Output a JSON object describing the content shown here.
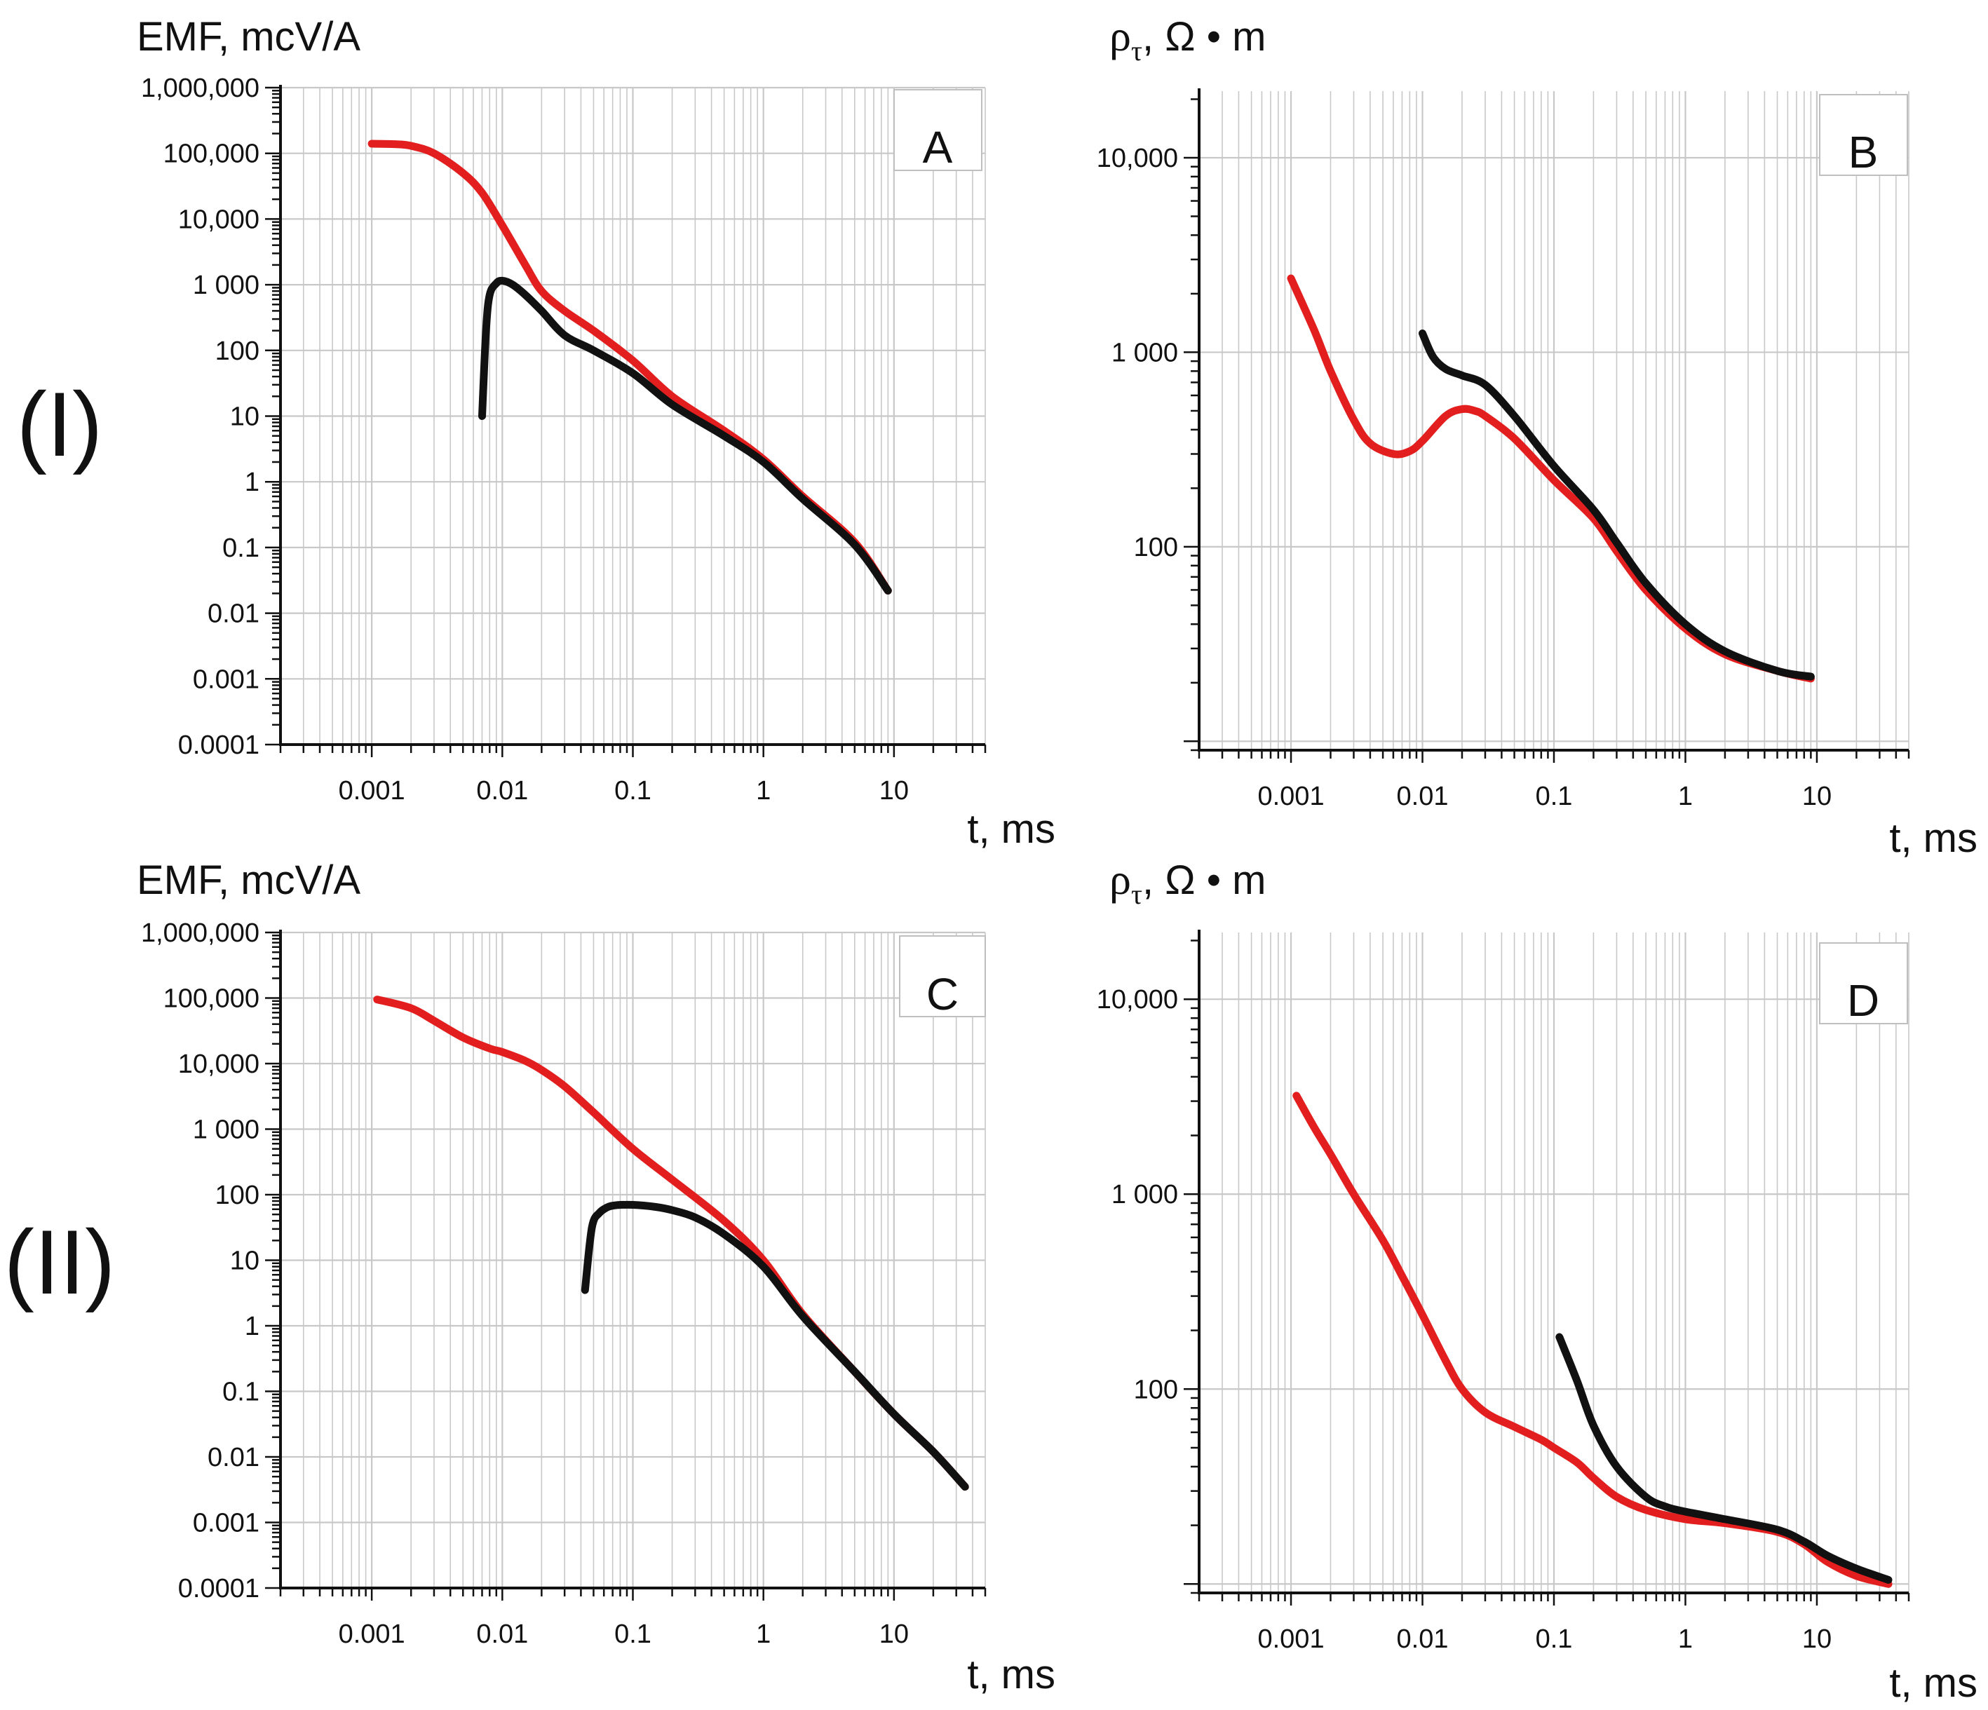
{
  "row_labels": [
    "(I)",
    "(II)"
  ],
  "colors": {
    "red": "#e31e1e",
    "black": "#111111",
    "grid": "#c8c8c8",
    "axis": "#111111"
  },
  "chart_data": [
    {
      "id": "A",
      "row": "(I)",
      "label": "A",
      "type": "line",
      "title": "",
      "ylabel": "EMF, mcV/A",
      "xlabel": "t, ms",
      "x_scale": "log",
      "y_scale": "log",
      "xlim": [
        0.0002,
        50
      ],
      "ylim": [
        0.0001,
        1000000
      ],
      "x_ticks": [
        {
          "v": 0.001,
          "label": "0.001"
        },
        {
          "v": 0.01,
          "label": "0.01"
        },
        {
          "v": 0.1,
          "label": "0.1"
        },
        {
          "v": 1,
          "label": "1"
        },
        {
          "v": 10,
          "label": "10"
        }
      ],
      "y_ticks": [
        {
          "v": 1000000,
          "label": "1,000,000"
        },
        {
          "v": 100000,
          "label": "100,000"
        },
        {
          "v": 10000,
          "label": "10,000"
        },
        {
          "v": 1000,
          "label": "1 000"
        },
        {
          "v": 100,
          "label": "100"
        },
        {
          "v": 10,
          "label": "10"
        },
        {
          "v": 1,
          "label": "1"
        },
        {
          "v": 0.1,
          "label": "0.1"
        },
        {
          "v": 0.01,
          "label": "0.01"
        },
        {
          "v": 0.001,
          "label": "0.001"
        },
        {
          "v": 0.0001,
          "label": "0.0001"
        }
      ],
      "series": [
        {
          "name": "red",
          "color": "red",
          "x": [
            0.001,
            0.0015,
            0.002,
            0.003,
            0.005,
            0.007,
            0.01,
            0.015,
            0.02,
            0.03,
            0.05,
            0.1,
            0.2,
            0.5,
            1,
            2,
            5,
            9
          ],
          "y": [
            140000,
            138000,
            130000,
            100000,
            50000,
            25000,
            8000,
            2000,
            800,
            400,
            200,
            70,
            20,
            6,
            2.2,
            0.6,
            0.12,
            0.022
          ]
        },
        {
          "name": "black",
          "color": "black",
          "x": [
            0.007,
            0.0075,
            0.008,
            0.009,
            0.01,
            0.012,
            0.015,
            0.02,
            0.03,
            0.05,
            0.1,
            0.2,
            0.5,
            1,
            2,
            5,
            9
          ],
          "y": [
            10,
            200,
            700,
            1050,
            1150,
            1000,
            700,
            400,
            170,
            100,
            45,
            15,
            5,
            2,
            0.55,
            0.11,
            0.022
          ]
        }
      ]
    },
    {
      "id": "B",
      "row": "(I)",
      "label": "B",
      "type": "line",
      "title": "",
      "ylabel_main": "ρ",
      "ylabel_sub": "τ",
      "ylabel_rest": ", Ω • m",
      "xlabel": "t, ms",
      "x_scale": "log",
      "y_scale": "log",
      "xlim": [
        0.0002,
        50
      ],
      "ylim": [
        9,
        22000
      ],
      "x_ticks": [
        {
          "v": 0.001,
          "label": "0.001"
        },
        {
          "v": 0.01,
          "label": "0.01"
        },
        {
          "v": 0.1,
          "label": "0.1"
        },
        {
          "v": 1,
          "label": "1"
        },
        {
          "v": 10,
          "label": "10"
        }
      ],
      "y_ticks": [
        {
          "v": 10000,
          "label": "10,000"
        },
        {
          "v": 1000,
          "label": "1 000"
        },
        {
          "v": 100,
          "label": "100"
        },
        {
          "v": 10,
          "label": ""
        }
      ],
      "series": [
        {
          "name": "red",
          "color": "red",
          "x": [
            0.001,
            0.0015,
            0.002,
            0.003,
            0.004,
            0.006,
            0.008,
            0.01,
            0.015,
            0.02,
            0.025,
            0.03,
            0.05,
            0.1,
            0.2,
            0.3,
            0.5,
            1,
            2,
            5,
            9
          ],
          "y": [
            2400,
            1300,
            800,
            450,
            340,
            300,
            310,
            350,
            470,
            510,
            500,
            470,
            360,
            220,
            140,
            95,
            60,
            38,
            28,
            23,
            21
          ]
        },
        {
          "name": "black",
          "color": "black",
          "x": [
            0.01,
            0.012,
            0.015,
            0.02,
            0.03,
            0.05,
            0.1,
            0.2,
            0.3,
            0.5,
            1,
            2,
            5,
            9
          ],
          "y": [
            1250,
            950,
            820,
            760,
            680,
            470,
            260,
            155,
            105,
            65,
            40,
            29,
            23,
            21.5
          ]
        }
      ]
    },
    {
      "id": "C",
      "row": "(II)",
      "label": "C",
      "type": "line",
      "title": "",
      "ylabel": "EMF, mcV/A",
      "xlabel": "t, ms",
      "x_scale": "log",
      "y_scale": "log",
      "xlim": [
        0.0002,
        50
      ],
      "ylim": [
        0.0001,
        1000000
      ],
      "x_ticks": [
        {
          "v": 0.001,
          "label": "0.001"
        },
        {
          "v": 0.01,
          "label": "0.01"
        },
        {
          "v": 0.1,
          "label": "0.1"
        },
        {
          "v": 1,
          "label": "1"
        },
        {
          "v": 10,
          "label": "10"
        }
      ],
      "y_ticks": [
        {
          "v": 1000000,
          "label": "1,000,000"
        },
        {
          "v": 100000,
          "label": "100,000"
        },
        {
          "v": 10000,
          "label": "10,000"
        },
        {
          "v": 1000,
          "label": "1 000"
        },
        {
          "v": 100,
          "label": "100"
        },
        {
          "v": 10,
          "label": "10"
        },
        {
          "v": 1,
          "label": "1"
        },
        {
          "v": 0.1,
          "label": "0.1"
        },
        {
          "v": 0.01,
          "label": "0.01"
        },
        {
          "v": 0.001,
          "label": "0.001"
        },
        {
          "v": 0.0001,
          "label": "0.0001"
        }
      ],
      "series": [
        {
          "name": "red",
          "color": "red",
          "x": [
            0.0011,
            0.002,
            0.003,
            0.005,
            0.008,
            0.01,
            0.015,
            0.02,
            0.03,
            0.05,
            0.1,
            0.2,
            0.5,
            1,
            2,
            5,
            10,
            20,
            35
          ],
          "y": [
            95000,
            70000,
            45000,
            25000,
            17000,
            15000,
            11000,
            8000,
            4500,
            1800,
            500,
            170,
            40,
            10,
            1.5,
            0.2,
            0.045,
            0.012,
            0.0035
          ]
        },
        {
          "name": "black",
          "color": "black",
          "x": [
            0.043,
            0.047,
            0.05,
            0.055,
            0.06,
            0.07,
            0.1,
            0.15,
            0.2,
            0.3,
            0.5,
            1,
            2,
            5,
            10,
            20,
            35
          ],
          "y": [
            3.5,
            20,
            40,
            52,
            60,
            68,
            70,
            65,
            58,
            45,
            25,
            8,
            1.4,
            0.2,
            0.045,
            0.012,
            0.0035
          ]
        }
      ]
    },
    {
      "id": "D",
      "row": "(II)",
      "label": "D",
      "type": "line",
      "title": "",
      "ylabel_main": "ρ",
      "ylabel_sub": "τ",
      "ylabel_rest": ", Ω • m",
      "xlabel": "t, ms",
      "x_scale": "log",
      "y_scale": "log",
      "xlim": [
        0.0002,
        50
      ],
      "ylim": [
        9,
        22000
      ],
      "x_ticks": [
        {
          "v": 0.001,
          "label": "0.001"
        },
        {
          "v": 0.01,
          "label": "0.01"
        },
        {
          "v": 0.1,
          "label": "0.1"
        },
        {
          "v": 1,
          "label": "1"
        },
        {
          "v": 10,
          "label": "10"
        }
      ],
      "y_ticks": [
        {
          "v": 10000,
          "label": "10,000"
        },
        {
          "v": 1000,
          "label": "1 000"
        },
        {
          "v": 100,
          "label": "100"
        },
        {
          "v": 10,
          "label": ""
        }
      ],
      "series": [
        {
          "name": "red",
          "color": "red",
          "x": [
            0.0011,
            0.0015,
            0.002,
            0.003,
            0.005,
            0.007,
            0.01,
            0.015,
            0.02,
            0.03,
            0.05,
            0.08,
            0.1,
            0.15,
            0.2,
            0.3,
            0.5,
            1,
            2,
            5,
            8,
            12,
            20,
            35
          ],
          "y": [
            3200,
            2200,
            1600,
            1000,
            580,
            380,
            240,
            140,
            100,
            76,
            64,
            55,
            50,
            42,
            35,
            28,
            24,
            21.5,
            20.5,
            18.5,
            16,
            13,
            11,
            10
          ]
        },
        {
          "name": "black",
          "color": "black",
          "x": [
            0.11,
            0.15,
            0.2,
            0.3,
            0.5,
            0.7,
            1,
            2,
            5,
            8,
            12,
            20,
            35
          ],
          "y": [
            185,
            110,
            65,
            40,
            28,
            25,
            23.5,
            21.5,
            19,
            16.5,
            14,
            12,
            10.5
          ]
        }
      ]
    }
  ]
}
